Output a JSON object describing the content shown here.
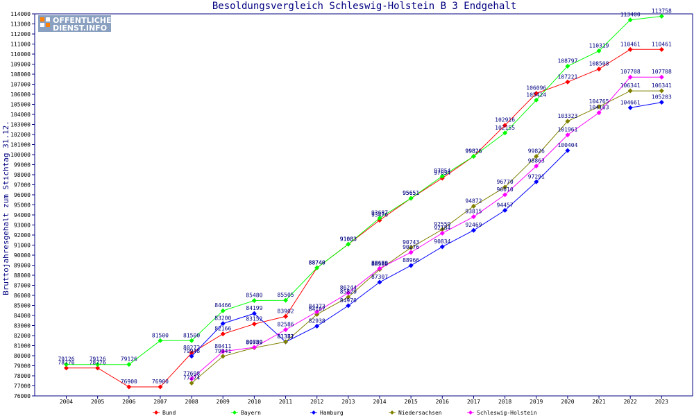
{
  "chart_data": {
    "type": "line",
    "title": "Besoldungsvergleich Schleswig-Holstein B 3 Endgehalt",
    "ylabel": "Bruttojahresgehalt zum Stichtag 31.12.",
    "xlabel": "",
    "ylim": [
      76000,
      114000
    ],
    "ytick_step": 1000,
    "grid": false,
    "legend_position": "bottom",
    "x": [
      "2004",
      "2005",
      "2006",
      "2007",
      "2008",
      "2009",
      "2010",
      "2011",
      "2012",
      "2013",
      "2014",
      "2015",
      "2016",
      "2017",
      "2018",
      "2019",
      "2020",
      "2021",
      "2022",
      "2023"
    ],
    "series": [
      {
        "name": "Bund",
        "color": "#ff0000",
        "values": [
          78776,
          78776,
          76900,
          76900,
          80272,
          82166,
          83152,
          83902,
          88740,
          91083,
          93476,
          95651,
          97654,
          99826,
          102916,
          106096,
          107221,
          108508,
          110461,
          110461
        ]
      },
      {
        "name": "Bayern",
        "color": "#00ff00",
        "values": [
          79126,
          79126,
          79126,
          81500,
          81500,
          84466,
          85480,
          85505,
          88740,
          91083,
          93687,
          95651,
          97854,
          99826,
          102155,
          105424,
          108797,
          110319,
          113400,
          113758
        ]
      },
      {
        "name": "Hamburg",
        "color": "#0000ff",
        "values": [
          null,
          null,
          null,
          null,
          79948,
          83200,
          84199,
          81371,
          82938,
          84970,
          87307,
          88966,
          90834,
          92469,
          94457,
          97291,
          100404,
          null,
          104661,
          105203
        ]
      },
      {
        "name": "Niedersachsen",
        "color": "#808000",
        "values": [
          null,
          null,
          null,
          null,
          77274,
          79941,
          80789,
          81382,
          84107,
          85829,
          88580,
          90743,
          92559,
          94872,
          96770,
          99826,
          103323,
          104765,
          106341,
          106341
        ]
      },
      {
        "name": "Schleswig-Holstein",
        "color": "#ff00ff",
        "values": [
          null,
          null,
          null,
          null,
          77698,
          80411,
          80830,
          82586,
          84373,
          86244,
          88680,
          90276,
          92184,
          93815,
          96010,
          98863,
          101961,
          104163,
          107708,
          107708
        ]
      }
    ]
  },
  "logo": {
    "line1": "OFFENTLICHER",
    "line2": "DIENST.INFO"
  }
}
